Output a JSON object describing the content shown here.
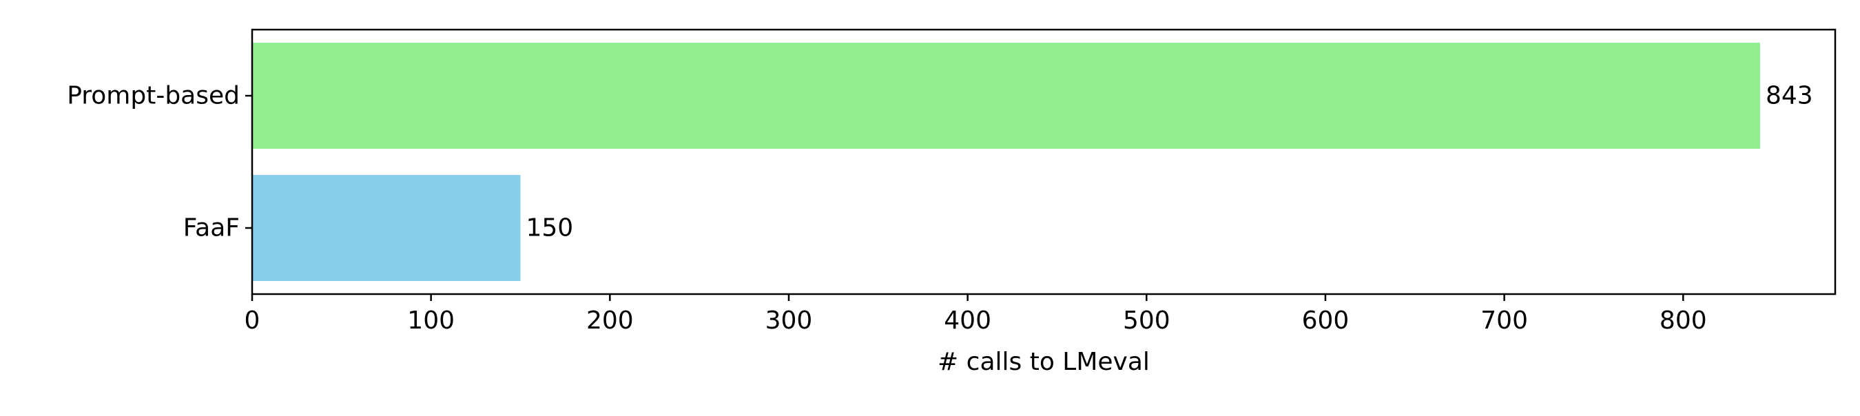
{
  "chart_data": {
    "type": "bar",
    "orientation": "horizontal",
    "categories": [
      "Prompt-based",
      "FaaF"
    ],
    "values": [
      843,
      150
    ],
    "colors": [
      "#90ee90",
      "#87ceeb"
    ],
    "value_labels": [
      "843",
      "150"
    ],
    "title": "",
    "xlabel": "# calls to LMeval",
    "ylabel": "",
    "xlim": [
      0,
      885
    ],
    "xticks": [
      0,
      100,
      200,
      300,
      400,
      500,
      600,
      700,
      800
    ],
    "xtick_labels": [
      "0",
      "100",
      "200",
      "300",
      "400",
      "500",
      "600",
      "700",
      "800"
    ],
    "grid": false,
    "legend": "none"
  }
}
